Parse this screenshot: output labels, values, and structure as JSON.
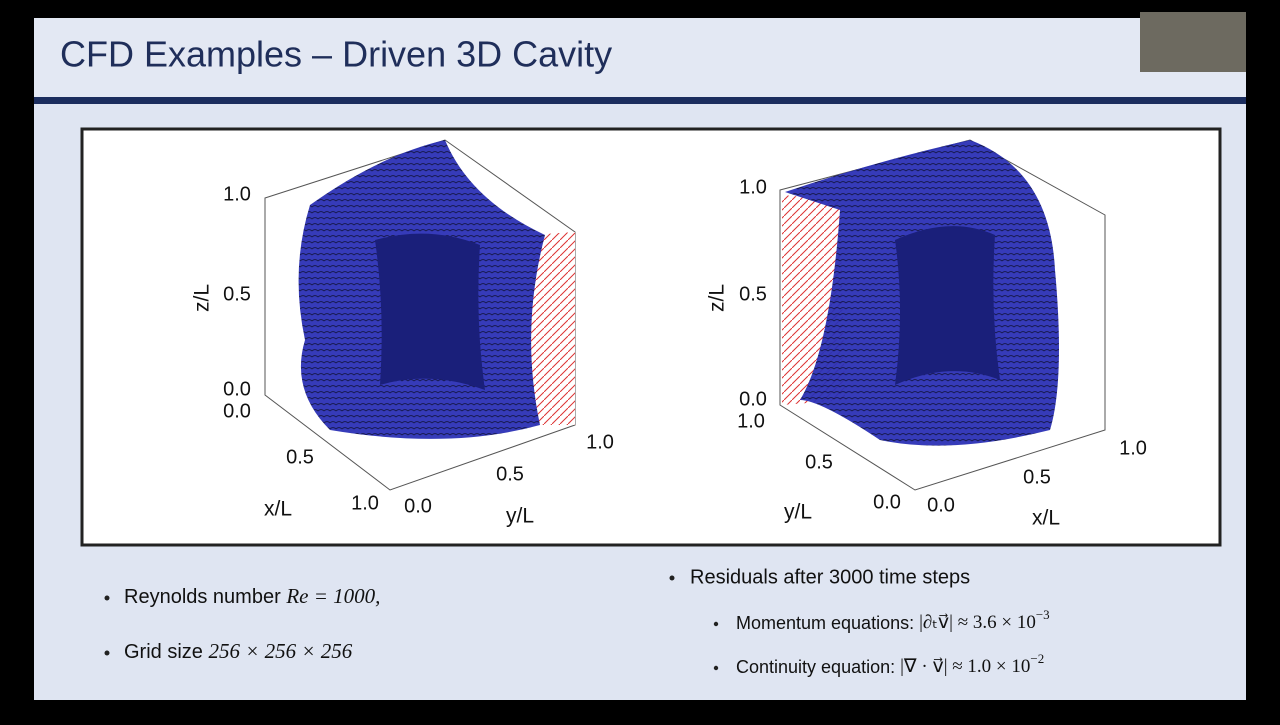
{
  "slide": {
    "title": "CFD Examples – Driven 3D Cavity"
  },
  "figures": [
    {
      "z_label": "z/L",
      "x_label": "x/L",
      "y_label": "y/L",
      "z_ticks": [
        "0.0",
        "0.5",
        "1.0"
      ],
      "x_ticks": [
        "0.0",
        "0.5",
        "1.0"
      ],
      "y_ticks": [
        "0.0",
        "0.5",
        "1.0"
      ]
    },
    {
      "z_label": "z/L",
      "x_label": "x/L",
      "y_label": "y/L",
      "z_ticks": [
        "0.0",
        "0.5",
        "1.0"
      ],
      "x_ticks": [
        "0.0",
        "0.5",
        "1.0"
      ],
      "y_ticks": [
        "0.0",
        "0.5",
        "1.0"
      ]
    }
  ],
  "bullets_left": [
    {
      "text": "Reynolds number ",
      "math": "Re = 1000,"
    },
    {
      "text": "Grid size ",
      "math": "256 × 256 × 256"
    }
  ],
  "bullets_right": {
    "text": "Residuals after 3000 time steps",
    "items": [
      {
        "text": "Momentum equations: ",
        "math": "|∂ₜv⃗| ≈ 3.6 × 10",
        "exponent": "−3"
      },
      {
        "text": "Continuity equation: ",
        "math": "|∇ · v⃗| ≈ 1.0 × 10",
        "exponent": "−2"
      }
    ]
  }
}
